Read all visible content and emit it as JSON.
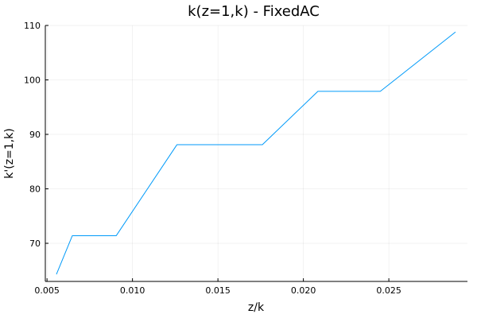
{
  "chart_data": {
    "type": "line",
    "title": "k(z=1,k) - FixedAC",
    "xlabel": "z/k",
    "ylabel": "k'(z=1,k)",
    "xlim": [
      0.0049,
      0.0296
    ],
    "ylim": [
      63,
      110
    ],
    "xticks": [
      0.005,
      0.01,
      0.015,
      0.02,
      0.025
    ],
    "xtick_labels": [
      "0.005",
      "0.010",
      "0.015",
      "0.020",
      "0.025"
    ],
    "yticks": [
      70,
      80,
      90,
      100,
      110
    ],
    "ytick_labels": [
      "70",
      "80",
      "90",
      "100",
      "110"
    ],
    "grid": true,
    "legend": "none",
    "series": [
      {
        "color": "#009af9",
        "x": [
          0.00555,
          0.00648,
          0.00905,
          0.0126,
          0.0176,
          0.02085,
          0.0245,
          0.0289
        ],
        "y": [
          64.3,
          71.4,
          71.4,
          88.1,
          88.1,
          97.9,
          97.9,
          108.8
        ]
      }
    ]
  }
}
